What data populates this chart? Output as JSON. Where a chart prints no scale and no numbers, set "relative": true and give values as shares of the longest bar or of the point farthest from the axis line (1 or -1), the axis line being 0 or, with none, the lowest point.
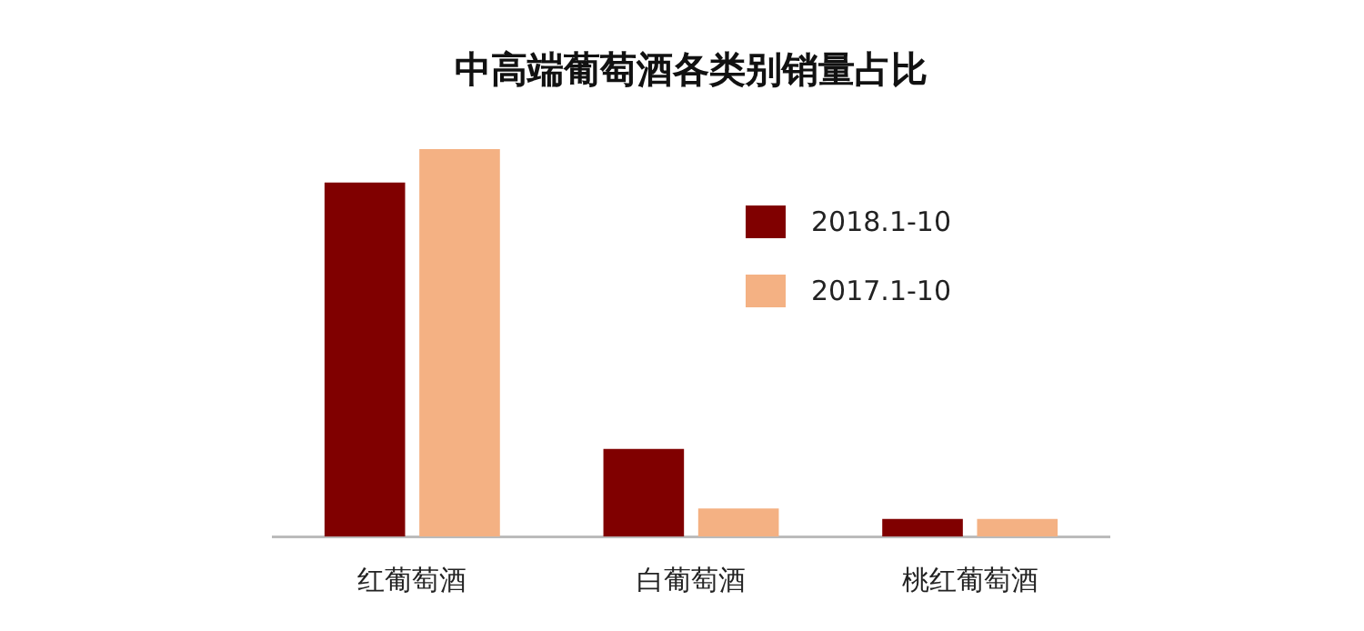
{
  "chart_data": {
    "type": "bar",
    "title": "中高端葡萄酒各类别销量占比",
    "categories": [
      "红葡萄酒",
      "白葡萄酒",
      "桃红葡萄酒"
    ],
    "relative": true,
    "legend": "right",
    "series": [
      {
        "name": "2018.1-10",
        "color": "#800000",
        "values": [
          0.914,
          0.226,
          0.045
        ]
      },
      {
        "name": "2017.1-10",
        "color": "#f4b183",
        "values": [
          1,
          0.072,
          0.045
        ]
      }
    ]
  }
}
